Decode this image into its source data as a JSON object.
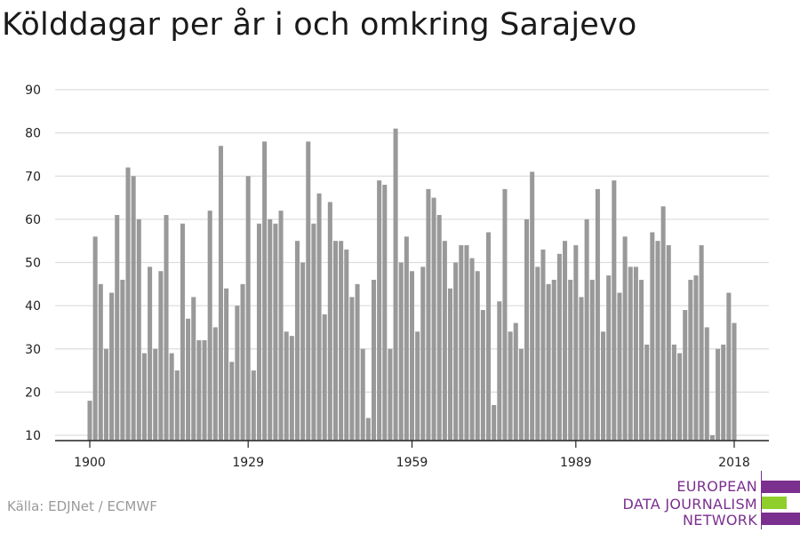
{
  "title": "Kölddagar per år i och omkring Sarajevo",
  "source": "Källa: EDJNet / ECMWF",
  "logo": {
    "lines": [
      "EUROPEAN",
      "DATA JOURNALISM",
      "NETWORK"
    ],
    "colors": {
      "purple": "#7b2f8e",
      "green": "#8fcf2b"
    }
  },
  "colors": {
    "bar": "#999999",
    "grid": "#dddddd",
    "axis": "#222222",
    "text": "#222222"
  },
  "chart_data": {
    "type": "bar",
    "title": "Kölddagar per år i och omkring Sarajevo",
    "xlabel": "",
    "ylabel": "",
    "ylim": [
      10,
      90
    ],
    "yticks": [
      10,
      20,
      30,
      40,
      50,
      60,
      70,
      80,
      90
    ],
    "xticks": [
      1900,
      1929,
      1959,
      1989,
      2018
    ],
    "grid": true,
    "x_start": 1900,
    "x_end": 2018,
    "values": [
      18,
      56,
      45,
      30,
      43,
      61,
      46,
      72,
      70,
      60,
      29,
      49,
      30,
      48,
      61,
      29,
      25,
      59,
      37,
      42,
      32,
      32,
      62,
      35,
      77,
      44,
      27,
      40,
      45,
      70,
      25,
      59,
      78,
      60,
      59,
      62,
      34,
      33,
      55,
      50,
      78,
      59,
      66,
      38,
      64,
      55,
      55,
      53,
      42,
      45,
      30,
      14,
      46,
      69,
      68,
      30,
      81,
      50,
      56,
      48,
      34,
      49,
      67,
      65,
      61,
      55,
      44,
      50,
      54,
      54,
      51,
      48,
      39,
      57,
      17,
      41,
      67,
      34,
      36,
      30,
      60,
      71,
      49,
      53,
      45,
      46,
      52,
      55,
      46,
      54,
      42,
      60,
      46,
      67,
      34,
      47,
      69,
      43,
      56,
      49,
      49,
      46,
      31,
      57,
      55,
      63,
      54,
      31,
      29,
      39,
      46,
      47,
      54,
      35,
      10,
      30,
      31,
      43,
      36
    ]
  }
}
